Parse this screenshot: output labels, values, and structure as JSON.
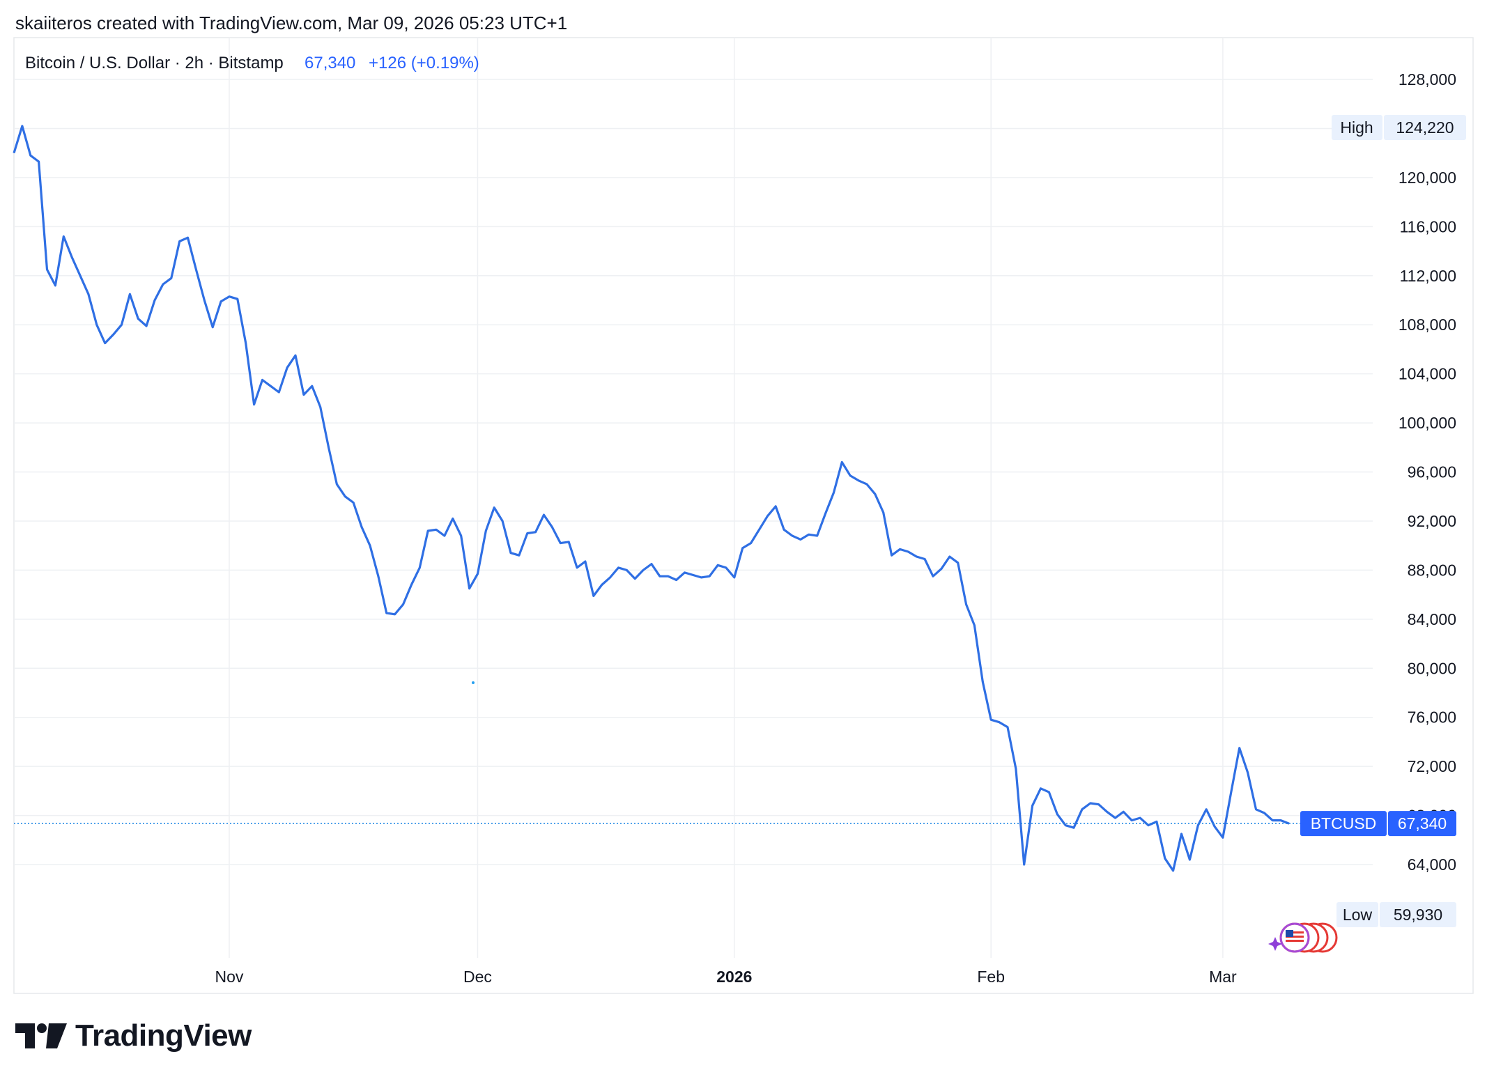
{
  "header": {
    "created_by": "skaiiteros created with TradingView.com, Mar 09, 2026 05:23 UTC+1"
  },
  "legend": {
    "symbol": "Bitcoin / U.S. Dollar · 2h · Bitstamp",
    "price": "67,340",
    "change": "+126 (+0.19%)"
  },
  "markers": {
    "high_label": "High",
    "high_value": "124,220",
    "low_label": "Low",
    "low_value": "59,930",
    "ticker_label": "BTCUSD",
    "ticker_value": "67,340"
  },
  "branding": {
    "logo_text": "TradingView",
    "logo_icon": "tradingview-logo-icon",
    "flag_icon": "us-flag-icon",
    "sparkle_icon": "sparkle-icon"
  },
  "colors": {
    "line": "#2f6fe4",
    "accent": "#2962ff",
    "grid": "#eef0f3",
    "text": "#131722",
    "marker_bg": "#e9f1fd",
    "current_price_line": "#1e88e5"
  },
  "chart_data": {
    "type": "line",
    "title": "Bitcoin / U.S. Dollar · 2h · Bitstamp",
    "xlabel": "",
    "ylabel": "",
    "x_ticks": [
      "Nov",
      "Dec",
      "2026",
      "Feb",
      "Mar"
    ],
    "y_ticks": [
      "64,000",
      "68,000",
      "72,000",
      "76,000",
      "80,000",
      "84,000",
      "88,000",
      "92,000",
      "96,000",
      "100,000",
      "104,000",
      "108,000",
      "112,000",
      "116,000",
      "120,000",
      "124,000",
      "128,000"
    ],
    "ylim": [
      57000,
      130000
    ],
    "xlim": [
      "2025-10-06",
      "2026-03-09"
    ],
    "grid": true,
    "series": [
      {
        "x": [
          "2025-10-06",
          "2025-10-07",
          "2025-10-08",
          "2025-10-09",
          "2025-10-10",
          "2025-10-11",
          "2025-10-12",
          "2025-10-13",
          "2025-10-14",
          "2025-10-15",
          "2025-10-16",
          "2025-10-17",
          "2025-10-18",
          "2025-10-19",
          "2025-10-20",
          "2025-10-21",
          "2025-10-22",
          "2025-10-23",
          "2025-10-24",
          "2025-10-25",
          "2025-10-26",
          "2025-10-27",
          "2025-10-28",
          "2025-10-29",
          "2025-10-30",
          "2025-10-31",
          "2025-11-01",
          "2025-11-02",
          "2025-11-03",
          "2025-11-04",
          "2025-11-05",
          "2025-11-06",
          "2025-11-07",
          "2025-11-08",
          "2025-11-09",
          "2025-11-10",
          "2025-11-11",
          "2025-11-12",
          "2025-11-13",
          "2025-11-14",
          "2025-11-15",
          "2025-11-16",
          "2025-11-17",
          "2025-11-18",
          "2025-11-19",
          "2025-11-20",
          "2025-11-21",
          "2025-11-22",
          "2025-11-23",
          "2025-11-24",
          "2025-11-25",
          "2025-11-26",
          "2025-11-27",
          "2025-11-28",
          "2025-11-29",
          "2025-11-30",
          "2025-12-01",
          "2025-12-02",
          "2025-12-03",
          "2025-12-04",
          "2025-12-05",
          "2025-12-06",
          "2025-12-07",
          "2025-12-08",
          "2025-12-09",
          "2025-12-10",
          "2025-12-11",
          "2025-12-12",
          "2025-12-13",
          "2025-12-14",
          "2025-12-15",
          "2025-12-16",
          "2025-12-17",
          "2025-12-18",
          "2025-12-19",
          "2025-12-20",
          "2025-12-21",
          "2025-12-22",
          "2025-12-23",
          "2025-12-24",
          "2025-12-25",
          "2025-12-26",
          "2025-12-27",
          "2025-12-28",
          "2025-12-29",
          "2025-12-30",
          "2025-12-31",
          "2026-01-01",
          "2026-01-02",
          "2026-01-03",
          "2026-01-04",
          "2026-01-05",
          "2026-01-06",
          "2026-01-07",
          "2026-01-08",
          "2026-01-09",
          "2026-01-10",
          "2026-01-11",
          "2026-01-12",
          "2026-01-13",
          "2026-01-14",
          "2026-01-15",
          "2026-01-16",
          "2026-01-17",
          "2026-01-18",
          "2026-01-19",
          "2026-01-20",
          "2026-01-21",
          "2026-01-22",
          "2026-01-23",
          "2026-01-24",
          "2026-01-25",
          "2026-01-26",
          "2026-01-27",
          "2026-01-28",
          "2026-01-29",
          "2026-01-30",
          "2026-01-31",
          "2026-02-01",
          "2026-02-02",
          "2026-02-03",
          "2026-02-04",
          "2026-02-05",
          "2026-02-06",
          "2026-02-07",
          "2026-02-08",
          "2026-02-09",
          "2026-02-10",
          "2026-02-11",
          "2026-02-12",
          "2026-02-13",
          "2026-02-14",
          "2026-02-15",
          "2026-02-16",
          "2026-02-17",
          "2026-02-18",
          "2026-02-19",
          "2026-02-20",
          "2026-02-21",
          "2026-02-22",
          "2026-02-23",
          "2026-02-24",
          "2026-02-25",
          "2026-02-26",
          "2026-02-27",
          "2026-02-28",
          "2026-03-01",
          "2026-03-02",
          "2026-03-03",
          "2026-03-04",
          "2026-03-05",
          "2026-03-06",
          "2026-03-07",
          "2026-03-08",
          "2026-03-09"
        ],
        "values": [
          122000,
          124200,
          121800,
          121300,
          112500,
          111200,
          115200,
          113500,
          112000,
          110500,
          108000,
          106500,
          107200,
          108000,
          110500,
          108500,
          107900,
          110000,
          111300,
          111800,
          114800,
          115100,
          112500,
          110000,
          107800,
          109900,
          110300,
          110100,
          106500,
          101500,
          103500,
          103000,
          102500,
          104500,
          105500,
          102300,
          103000,
          101300,
          98000,
          95000,
          94000,
          93500,
          91500,
          90000,
          87500,
          84500,
          84400,
          85200,
          86800,
          88200,
          91200,
          91300,
          90800,
          92200,
          90800,
          86500,
          87700,
          91200,
          93100,
          92000,
          89400,
          89200,
          91000,
          91100,
          92500,
          91500,
          90200,
          90300,
          88200,
          88700,
          85900,
          86800,
          87400,
          88200,
          88000,
          87300,
          88000,
          88500,
          87500,
          87500,
          87200,
          87800,
          87600,
          87400,
          87500,
          88400,
          88200,
          87400,
          89800,
          90200,
          91300,
          92400,
          93200,
          91300,
          90800,
          90500,
          90900,
          90800,
          92600,
          94300,
          96800,
          95700,
          95300,
          95000,
          94200,
          92700,
          89200,
          89700,
          89500,
          89100,
          88900,
          87500,
          88100,
          89100,
          88600,
          85200,
          83500,
          78900,
          75800,
          75600,
          75200,
          71800,
          64000,
          68800,
          70200,
          69900,
          68100,
          67200,
          67000,
          68500,
          69000,
          68900,
          68300,
          67800,
          68300,
          67600,
          67800,
          67200,
          67500,
          64500,
          63500,
          66500,
          64400,
          67200,
          68500,
          67100,
          66200,
          69900,
          73500,
          71500,
          68500,
          68200,
          67600,
          67600,
          67340
        ]
      }
    ]
  }
}
